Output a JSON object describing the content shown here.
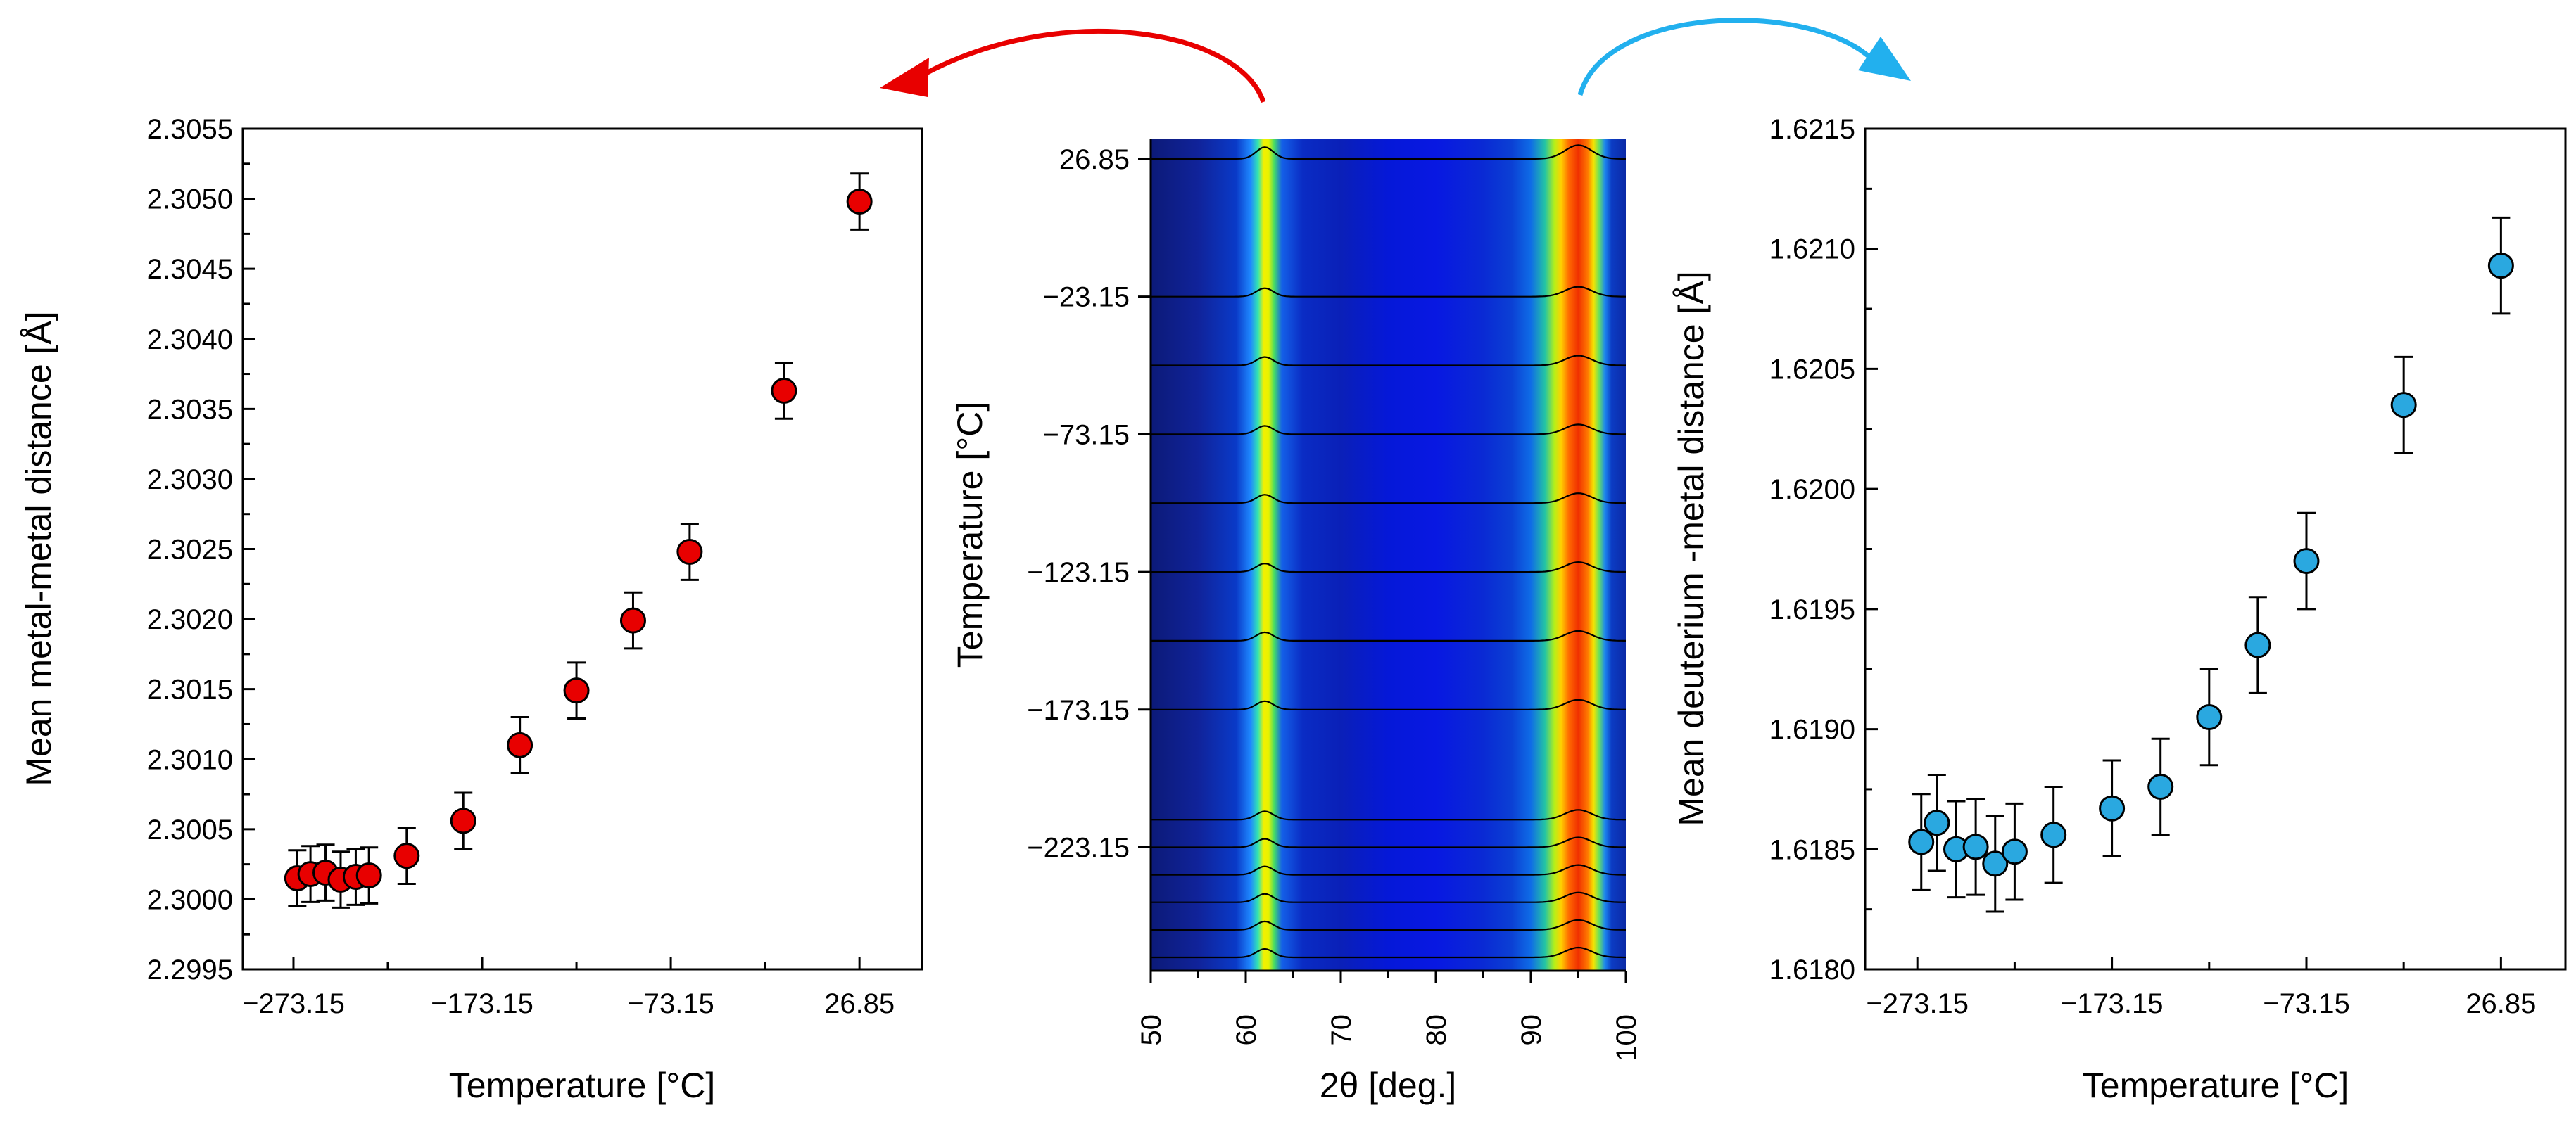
{
  "chart_data": [
    {
      "type": "scatter",
      "panel": "left",
      "xlabel": "Temperature [°C]",
      "ylabel": "Mean metal-metal distance [Å]",
      "xlim": [
        -300,
        60
      ],
      "ylim": [
        2.2995,
        2.3055
      ],
      "xticks": [
        "-273.15",
        "-173.15",
        "-73.15",
        "26.85"
      ],
      "yticks": [
        "2.2995",
        "2.3000",
        "2.3005",
        "2.3010",
        "2.3015",
        "2.3020",
        "2.3025",
        "2.3030",
        "2.3035",
        "2.3040",
        "2.3045",
        "2.3050",
        "2.3055"
      ],
      "marker_color": "#e80000",
      "series": [
        {
          "name": "metal-metal",
          "x": [
            -271.15,
            -264.15,
            -256.15,
            -248.15,
            -240.15,
            -233.15,
            -213.15,
            -183.15,
            -153.15,
            -123.15,
            -93.15,
            -63.15,
            -13.15,
            26.85
          ],
          "y": [
            2.30015,
            2.30018,
            2.30019,
            2.30014,
            2.30016,
            2.30017,
            2.30031,
            2.30056,
            2.3011,
            2.30149,
            2.30199,
            2.30248,
            2.30363,
            2.30498
          ],
          "err": [
            0.0002,
            0.0002,
            0.0002,
            0.0002,
            0.0002,
            0.0002,
            0.0002,
            0.0002,
            0.0002,
            0.0002,
            0.0002,
            0.0002,
            0.0002,
            0.0002
          ]
        }
      ]
    },
    {
      "type": "heatmap",
      "panel": "center",
      "xlabel": "2θ [deg.]",
      "ylabel": "Temperature [°C]",
      "xlim": [
        50,
        100
      ],
      "xticks": [
        "50",
        "60",
        "70",
        "80",
        "90",
        "100"
      ],
      "yticks": [
        "26.85",
        "-23.15",
        "-73.15",
        "-123.15",
        "-173.15",
        "-223.15"
      ],
      "ytick_values": [
        26.85,
        -23.15,
        -73.15,
        -123.15,
        -173.15,
        -223.15
      ],
      "ylim": [
        -268,
        34
      ],
      "peaks_2theta": [
        62,
        95
      ],
      "trace_temperatures": [
        -263.15,
        -253.15,
        -243.15,
        -233.15,
        -223.15,
        -213.15,
        -173.15,
        -148.15,
        -123.15,
        -98.15,
        -73.15,
        -48.15,
        -23.15,
        26.85
      ]
    },
    {
      "type": "scatter",
      "panel": "right",
      "xlabel": "Temperature [°C]",
      "ylabel": "Mean deuterium -metal distance [Å]",
      "xlim": [
        -300,
        60
      ],
      "ylim": [
        1.618,
        1.6215
      ],
      "xticks": [
        "-273.15",
        "-173.15",
        "-73.15",
        "26.85"
      ],
      "yticks": [
        "1.6180",
        "1.6185",
        "1.6190",
        "1.6195",
        "1.6200",
        "1.6205",
        "1.6210",
        "1.6215"
      ],
      "marker_color": "#2aa8e0",
      "series": [
        {
          "name": "deuterium-metal",
          "x": [
            -271.15,
            -263.15,
            -253.15,
            -243.15,
            -233.15,
            -223.15,
            -203.15,
            -173.15,
            -148.15,
            -123.15,
            -98.15,
            -73.15,
            -23.15,
            26.85
          ],
          "y": [
            1.61853,
            1.61861,
            1.6185,
            1.61851,
            1.61844,
            1.61849,
            1.61856,
            1.61867,
            1.61876,
            1.61905,
            1.61935,
            1.6197,
            1.62035,
            1.62093
          ],
          "err": [
            0.0002,
            0.0002,
            0.0002,
            0.0002,
            0.0002,
            0.0002,
            0.0002,
            0.0002,
            0.0002,
            0.0002,
            0.0002,
            0.0002,
            0.0002,
            0.0002
          ]
        }
      ]
    }
  ]
}
